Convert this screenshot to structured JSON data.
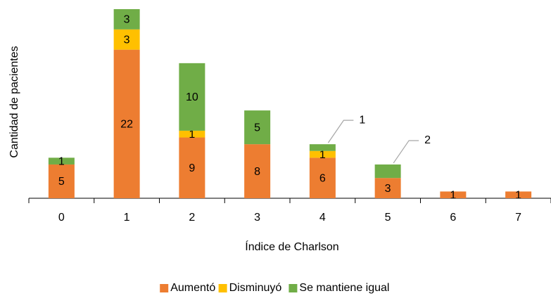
{
  "chart_data": {
    "type": "stacked_bar",
    "x_label": "Índice de Charlson",
    "y_label": "Cantidad de pacientes",
    "categories": [
      "0",
      "1",
      "2",
      "3",
      "4",
      "5",
      "6",
      "7"
    ],
    "series": [
      {
        "name": "Aumentó",
        "color": "#ed7d31",
        "values": [
          5,
          22,
          9,
          8,
          6,
          3,
          1,
          1
        ]
      },
      {
        "name": "Disminuyó",
        "color": "#ffc000",
        "values": [
          null,
          3,
          1,
          null,
          1,
          null,
          null,
          null
        ]
      },
      {
        "name": "Se mantiene igual",
        "color": "#70ad47",
        "values": [
          1,
          3,
          10,
          5,
          1,
          2,
          null,
          null
        ]
      }
    ],
    "legend": "bottom"
  }
}
